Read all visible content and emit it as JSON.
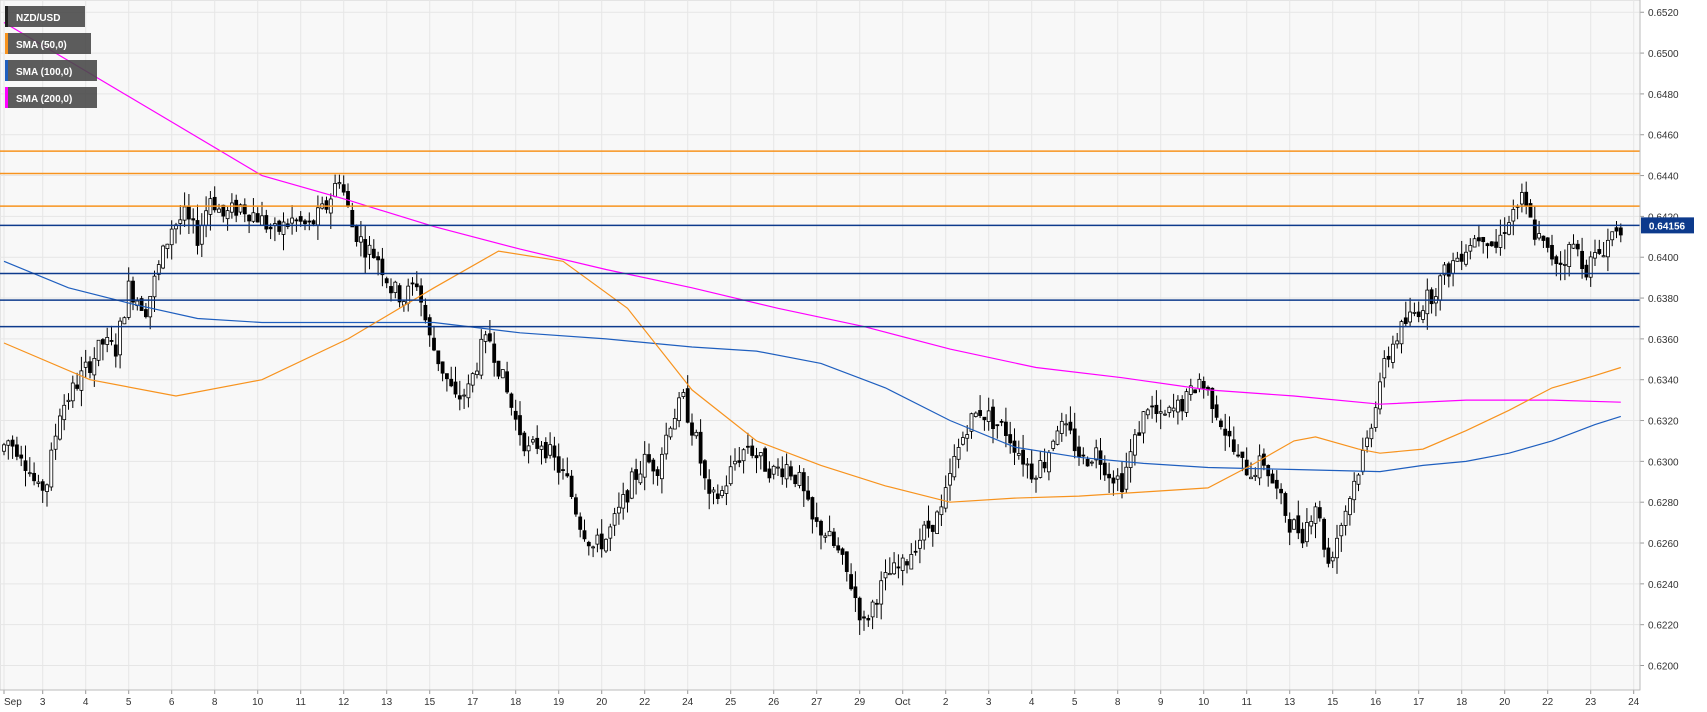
{
  "chart_data": {
    "type": "candlestick",
    "symbol": "NZD/USD",
    "y_range": [
      0.6188,
      0.6526
    ],
    "y_ticks": [
      "0.6520",
      "0.6500",
      "0.6480",
      "0.6460",
      "0.6440",
      "0.6420",
      "0.6400",
      "0.6380",
      "0.6360",
      "0.6340",
      "0.6320",
      "0.6300",
      "0.6280",
      "0.6260",
      "0.6240",
      "0.6220",
      "0.6200"
    ],
    "x_ticks": [
      {
        "label": "Sep",
        "bar": 0
      },
      {
        "label": "3",
        "bar": 9
      },
      {
        "label": "4",
        "bar": 19
      },
      {
        "label": "5",
        "bar": 29
      },
      {
        "label": "6",
        "bar": 39
      },
      {
        "label": "8",
        "bar": 49
      },
      {
        "label": "10",
        "bar": 59
      },
      {
        "label": "11",
        "bar": 69
      },
      {
        "label": "12",
        "bar": 79
      },
      {
        "label": "13",
        "bar": 89
      },
      {
        "label": "15",
        "bar": 99
      },
      {
        "label": "17",
        "bar": 109
      },
      {
        "label": "18",
        "bar": 119
      },
      {
        "label": "19",
        "bar": 129
      },
      {
        "label": "20",
        "bar": 139
      },
      {
        "label": "22",
        "bar": 149
      },
      {
        "label": "24",
        "bar": 159
      },
      {
        "label": "25",
        "bar": 169
      },
      {
        "label": "26",
        "bar": 179
      },
      {
        "label": "27",
        "bar": 189
      },
      {
        "label": "29",
        "bar": 199
      },
      {
        "label": "Oct",
        "bar": 209
      },
      {
        "label": "2",
        "bar": 219
      },
      {
        "label": "3",
        "bar": 229
      },
      {
        "label": "4",
        "bar": 239
      },
      {
        "label": "5",
        "bar": 249
      },
      {
        "label": "8",
        "bar": 259
      },
      {
        "label": "9",
        "bar": 269
      },
      {
        "label": "10",
        "bar": 279
      },
      {
        "label": "11",
        "bar": 289
      },
      {
        "label": "13",
        "bar": 299
      },
      {
        "label": "15",
        "bar": 309
      },
      {
        "label": "16",
        "bar": 319
      },
      {
        "label": "17",
        "bar": 329
      },
      {
        "label": "18",
        "bar": 339
      },
      {
        "label": "20",
        "bar": 349
      },
      {
        "label": "22",
        "bar": 359
      },
      {
        "label": "23",
        "bar": 369
      },
      {
        "label": "24",
        "bar": 379
      }
    ],
    "bars_visible": 377,
    "legend": [
      {
        "label": "NZD/USD",
        "color": "#222222"
      },
      {
        "label": "SMA (50,0)",
        "color": "#f7931e"
      },
      {
        "label": "SMA (100,0)",
        "color": "#1f5fbf"
      },
      {
        "label": "SMA (200,0)",
        "color": "#ff00ff"
      }
    ],
    "resistance_levels": [
      0.6452,
      0.6441,
      0.6425
    ],
    "support_levels": [
      0.64156,
      0.6392,
      0.6379,
      0.6366
    ],
    "last_price": "0.64156",
    "last_price_value": 0.64156,
    "colors": {
      "resistance": "#f7931e",
      "support": "#0d3a8c",
      "sma50": "#f7931e",
      "sma100": "#1f5fbf",
      "sma200": "#ff00ff",
      "bull_body": "#ffffff",
      "bear_body": "#000000",
      "wick": "#000000",
      "grid": "#e6e6e6",
      "plot_bg": "#f8f8f8",
      "price_tag_bg": "#0d3a8c"
    },
    "candle_keypoints": [
      [
        0,
        0.6305
      ],
      [
        2,
        0.631
      ],
      [
        5,
        0.6305
      ],
      [
        9,
        0.6285
      ],
      [
        11,
        0.629
      ],
      [
        14,
        0.6325
      ],
      [
        17,
        0.6335
      ],
      [
        20,
        0.6345
      ],
      [
        24,
        0.6358
      ],
      [
        27,
        0.6355
      ],
      [
        30,
        0.6385
      ],
      [
        34,
        0.6375
      ],
      [
        37,
        0.6395
      ],
      [
        40,
        0.6415
      ],
      [
        43,
        0.642
      ],
      [
        46,
        0.641
      ],
      [
        49,
        0.643
      ],
      [
        52,
        0.642
      ],
      [
        56,
        0.6425
      ],
      [
        60,
        0.642
      ],
      [
        64,
        0.6412
      ],
      [
        68,
        0.6418
      ],
      [
        72,
        0.6415
      ],
      [
        76,
        0.6425
      ],
      [
        79,
        0.644
      ],
      [
        82,
        0.6415
      ],
      [
        85,
        0.6405
      ],
      [
        88,
        0.64
      ],
      [
        91,
        0.6385
      ],
      [
        94,
        0.638
      ],
      [
        97,
        0.6388
      ],
      [
        100,
        0.636
      ],
      [
        103,
        0.6345
      ],
      [
        106,
        0.633
      ],
      [
        109,
        0.6335
      ],
      [
        112,
        0.6355
      ],
      [
        114,
        0.636
      ],
      [
        117,
        0.634
      ],
      [
        120,
        0.632
      ],
      [
        123,
        0.6305
      ],
      [
        126,
        0.631
      ],
      [
        129,
        0.63
      ],
      [
        132,
        0.629
      ],
      [
        135,
        0.627
      ],
      [
        138,
        0.6258
      ],
      [
        141,
        0.6262
      ],
      [
        144,
        0.6275
      ],
      [
        147,
        0.629
      ],
      [
        150,
        0.63
      ],
      [
        153,
        0.6298
      ],
      [
        156,
        0.632
      ],
      [
        159,
        0.633
      ],
      [
        162,
        0.631
      ],
      [
        165,
        0.628
      ],
      [
        168,
        0.6285
      ],
      [
        171,
        0.63
      ],
      [
        174,
        0.6308
      ],
      [
        177,
        0.63
      ],
      [
        180,
        0.6295
      ],
      [
        183,
        0.6298
      ],
      [
        186,
        0.629
      ],
      [
        189,
        0.627
      ],
      [
        192,
        0.6265
      ],
      [
        195,
        0.6255
      ],
      [
        198,
        0.624
      ],
      [
        201,
        0.622
      ],
      [
        204,
        0.6235
      ],
      [
        207,
        0.6245
      ],
      [
        210,
        0.6248
      ],
      [
        213,
        0.626
      ],
      [
        216,
        0.6268
      ],
      [
        219,
        0.6275
      ],
      [
        222,
        0.63
      ],
      [
        225,
        0.6318
      ],
      [
        228,
        0.6325
      ],
      [
        231,
        0.632
      ],
      [
        234,
        0.6315
      ],
      [
        237,
        0.6305
      ],
      [
        240,
        0.6295
      ],
      [
        243,
        0.63
      ],
      [
        246,
        0.6318
      ],
      [
        249,
        0.6312
      ],
      [
        252,
        0.63
      ],
      [
        255,
        0.6305
      ],
      [
        258,
        0.6295
      ],
      [
        261,
        0.629
      ],
      [
        264,
        0.631
      ],
      [
        267,
        0.6328
      ],
      [
        270,
        0.632
      ],
      [
        273,
        0.6325
      ],
      [
        276,
        0.633
      ],
      [
        279,
        0.634
      ],
      [
        282,
        0.633
      ],
      [
        285,
        0.6315
      ],
      [
        288,
        0.63
      ],
      [
        291,
        0.6295
      ],
      [
        294,
        0.63
      ],
      [
        297,
        0.6285
      ],
      [
        300,
        0.627
      ],
      [
        303,
        0.6265
      ],
      [
        306,
        0.628
      ],
      [
        309,
        0.625
      ],
      [
        312,
        0.627
      ],
      [
        315,
        0.629
      ],
      [
        318,
        0.631
      ],
      [
        321,
        0.634
      ],
      [
        324,
        0.6358
      ],
      [
        327,
        0.6368
      ],
      [
        330,
        0.6375
      ],
      [
        333,
        0.6382
      ],
      [
        336,
        0.6392
      ],
      [
        339,
        0.64
      ],
      [
        342,
        0.6408
      ],
      [
        345,
        0.6412
      ],
      [
        348,
        0.6405
      ],
      [
        351,
        0.642
      ],
      [
        354,
        0.6428
      ],
      [
        357,
        0.6412
      ],
      [
        360,
        0.6402
      ],
      [
        363,
        0.6398
      ],
      [
        366,
        0.6406
      ],
      [
        369,
        0.6395
      ],
      [
        372,
        0.6402
      ],
      [
        374,
        0.6408
      ],
      [
        376,
        0.64156
      ]
    ],
    "sma50_points": [
      [
        0,
        0.6358
      ],
      [
        20,
        0.634
      ],
      [
        40,
        0.6332
      ],
      [
        60,
        0.634
      ],
      [
        80,
        0.636
      ],
      [
        100,
        0.6385
      ],
      [
        115,
        0.6403
      ],
      [
        130,
        0.6398
      ],
      [
        145,
        0.6375
      ],
      [
        160,
        0.6335
      ],
      [
        175,
        0.631
      ],
      [
        190,
        0.6298
      ],
      [
        205,
        0.6288
      ],
      [
        220,
        0.628
      ],
      [
        235,
        0.6282
      ],
      [
        250,
        0.6283
      ],
      [
        265,
        0.6285
      ],
      [
        280,
        0.6287
      ],
      [
        290,
        0.6298
      ],
      [
        300,
        0.631
      ],
      [
        305,
        0.6312
      ],
      [
        315,
        0.6306
      ],
      [
        320,
        0.6304
      ],
      [
        330,
        0.6306
      ],
      [
        340,
        0.6315
      ],
      [
        350,
        0.6325
      ],
      [
        360,
        0.6336
      ],
      [
        370,
        0.6342
      ],
      [
        376,
        0.6346
      ]
    ],
    "sma100_points": [
      [
        0,
        0.6398
      ],
      [
        15,
        0.6385
      ],
      [
        30,
        0.6377
      ],
      [
        45,
        0.637
      ],
      [
        60,
        0.6368
      ],
      [
        80,
        0.6368
      ],
      [
        100,
        0.6368
      ],
      [
        120,
        0.6363
      ],
      [
        140,
        0.636
      ],
      [
        160,
        0.6356
      ],
      [
        175,
        0.6354
      ],
      [
        190,
        0.6348
      ],
      [
        205,
        0.6336
      ],
      [
        220,
        0.632
      ],
      [
        235,
        0.6307
      ],
      [
        250,
        0.6302
      ],
      [
        265,
        0.6299
      ],
      [
        280,
        0.6297
      ],
      [
        300,
        0.6296
      ],
      [
        320,
        0.6295
      ],
      [
        330,
        0.6298
      ],
      [
        340,
        0.63
      ],
      [
        350,
        0.6304
      ],
      [
        360,
        0.631
      ],
      [
        370,
        0.6318
      ],
      [
        376,
        0.6322
      ]
    ],
    "sma200_points": [
      [
        0,
        0.6515
      ],
      [
        20,
        0.649
      ],
      [
        40,
        0.6465
      ],
      [
        60,
        0.644
      ],
      [
        80,
        0.6428
      ],
      [
        100,
        0.6415
      ],
      [
        120,
        0.6404
      ],
      [
        140,
        0.6394
      ],
      [
        160,
        0.6385
      ],
      [
        180,
        0.6375
      ],
      [
        200,
        0.6366
      ],
      [
        220,
        0.6355
      ],
      [
        240,
        0.6346
      ],
      [
        260,
        0.6341
      ],
      [
        280,
        0.6335
      ],
      [
        300,
        0.6332
      ],
      [
        320,
        0.6328
      ],
      [
        340,
        0.633
      ],
      [
        360,
        0.633
      ],
      [
        376,
        0.6329
      ]
    ]
  }
}
